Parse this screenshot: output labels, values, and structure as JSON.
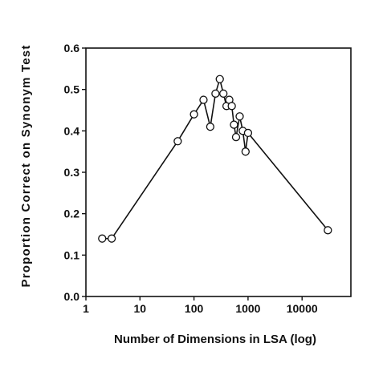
{
  "chart_data": {
    "type": "line",
    "title": "",
    "xlabel": "Number of Dimensions in LSA (log)",
    "ylabel": "Proportion Correct on Synonym Test",
    "xscale": "log",
    "xlim": [
      1,
      80000
    ],
    "ylim": [
      0.0,
      0.6
    ],
    "x_ticks": [
      1,
      10,
      100,
      1000,
      10000
    ],
    "x_tick_labels": [
      "1",
      "10",
      "100",
      "1000",
      "10000"
    ],
    "y_ticks": [
      0.0,
      0.1,
      0.2,
      0.3,
      0.4,
      0.5,
      0.6
    ],
    "y_tick_labels": [
      "0.0",
      "0.1",
      "0.2",
      "0.3",
      "0.4",
      "0.5",
      "0.6"
    ],
    "grid": false,
    "legend": "none",
    "marker": "open-circle",
    "line_color": "#111111",
    "series": [
      {
        "x": [
          2,
          3,
          50,
          100,
          150,
          200,
          250,
          300,
          350,
          400,
          450,
          500,
          550,
          600,
          700,
          800,
          900,
          1000,
          30000
        ],
        "y": [
          0.14,
          0.14,
          0.375,
          0.44,
          0.475,
          0.41,
          0.49,
          0.525,
          0.49,
          0.46,
          0.475,
          0.46,
          0.415,
          0.385,
          0.435,
          0.4,
          0.35,
          0.395,
          0.16
        ]
      }
    ]
  }
}
